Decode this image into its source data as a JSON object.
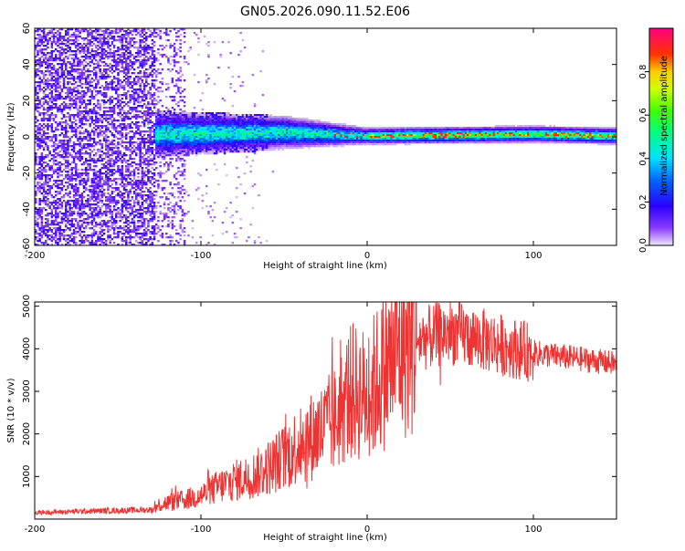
{
  "title": "GN05.2026.090.11.52.E06",
  "chart_data": [
    {
      "type": "heatmap",
      "title": "GN05.2026.090.11.52.E06",
      "xlabel": "Height of straight line (km)",
      "ylabel": "Frequency (Hz)",
      "xlim": [
        -200,
        150
      ],
      "ylim": [
        -60,
        60
      ],
      "xticks": [
        -200,
        -100,
        0,
        100
      ],
      "yticks": [
        -60,
        -40,
        -20,
        0,
        20,
        40,
        60
      ],
      "colorbar": {
        "label": "Normalized spectral amplitude",
        "ticks": [
          "0.0",
          "0.2",
          "0.4",
          "0.6",
          "0.8"
        ],
        "range": [
          0,
          1
        ]
      },
      "description_points": [
        {
          "x": -200,
          "band_center": 0,
          "noise": "broadband"
        },
        {
          "x": -125,
          "band_center": 2,
          "band_halfwidth": 8
        },
        {
          "x": -50,
          "band_center": 3,
          "band_halfwidth": 6
        },
        {
          "x": 0,
          "band_center": 1,
          "band_halfwidth": 3
        },
        {
          "x": 100,
          "band_center": 2,
          "band_halfwidth": 3
        },
        {
          "x": 150,
          "band_center": 1,
          "band_halfwidth": 3
        }
      ]
    },
    {
      "type": "line",
      "xlabel": "Height of straight line (km)",
      "ylabel": "SNR (10 * v/v)",
      "xlim": [
        -200,
        150
      ],
      "ylim": [
        0,
        5100
      ],
      "xticks": [
        -200,
        -100,
        0,
        100
      ],
      "yticks": [
        1000,
        2000,
        3000,
        4000,
        5000
      ],
      "series": [
        {
          "name": "SNR",
          "color": "#ee3333",
          "x": [
            -200,
            -175,
            -150,
            -128,
            -125,
            -110,
            -100,
            -90,
            -80,
            -70,
            -60,
            -50,
            -40,
            -30,
            -20,
            -10,
            0,
            10,
            20,
            30,
            40,
            50,
            60,
            70,
            80,
            90,
            100,
            110,
            120,
            130,
            140,
            150
          ],
          "y": [
            150,
            180,
            200,
            220,
            350,
            450,
            550,
            750,
            900,
            1000,
            1200,
            1450,
            1800,
            2000,
            2300,
            3000,
            2900,
            3500,
            4000,
            4200,
            4300,
            4400,
            4300,
            4200,
            4100,
            4000,
            3900,
            3850,
            3800,
            3750,
            3700,
            3650
          ]
        }
      ]
    }
  ]
}
